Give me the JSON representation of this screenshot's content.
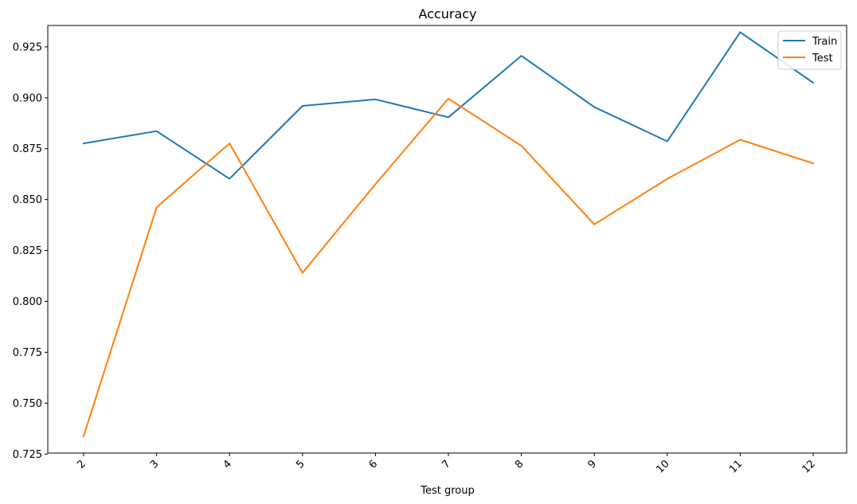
{
  "chart_data": {
    "type": "line",
    "title": "Accuracy",
    "xlabel": "Test group",
    "ylabel": "",
    "x": [
      "2",
      "3",
      "4",
      "5",
      "6",
      "7",
      "8",
      "9",
      "10",
      "11",
      "12"
    ],
    "ylim": [
      0.7255,
      0.9355
    ],
    "yticks": [
      0.725,
      0.75,
      0.775,
      0.8,
      0.825,
      0.85,
      0.875,
      0.9,
      0.925
    ],
    "ytick_labels": [
      "0.725",
      "0.750",
      "0.775",
      "0.800",
      "0.825",
      "0.850",
      "0.875",
      "0.900",
      "0.925"
    ],
    "grid": false,
    "legend": "top-right",
    "series": [
      {
        "name": "Train",
        "color": "#1f77b4",
        "values": [
          0.8776,
          0.8836,
          0.8602,
          0.896,
          0.8992,
          0.8904,
          0.9206,
          0.8954,
          0.8786,
          0.9322,
          0.9074
        ]
      },
      {
        "name": "Test",
        "color": "#ff7f0e",
        "values": [
          0.7338,
          0.8462,
          0.8776,
          0.814,
          0.8576,
          0.8996,
          0.8764,
          0.8378,
          0.8602,
          0.8794,
          0.8678
        ]
      }
    ]
  }
}
